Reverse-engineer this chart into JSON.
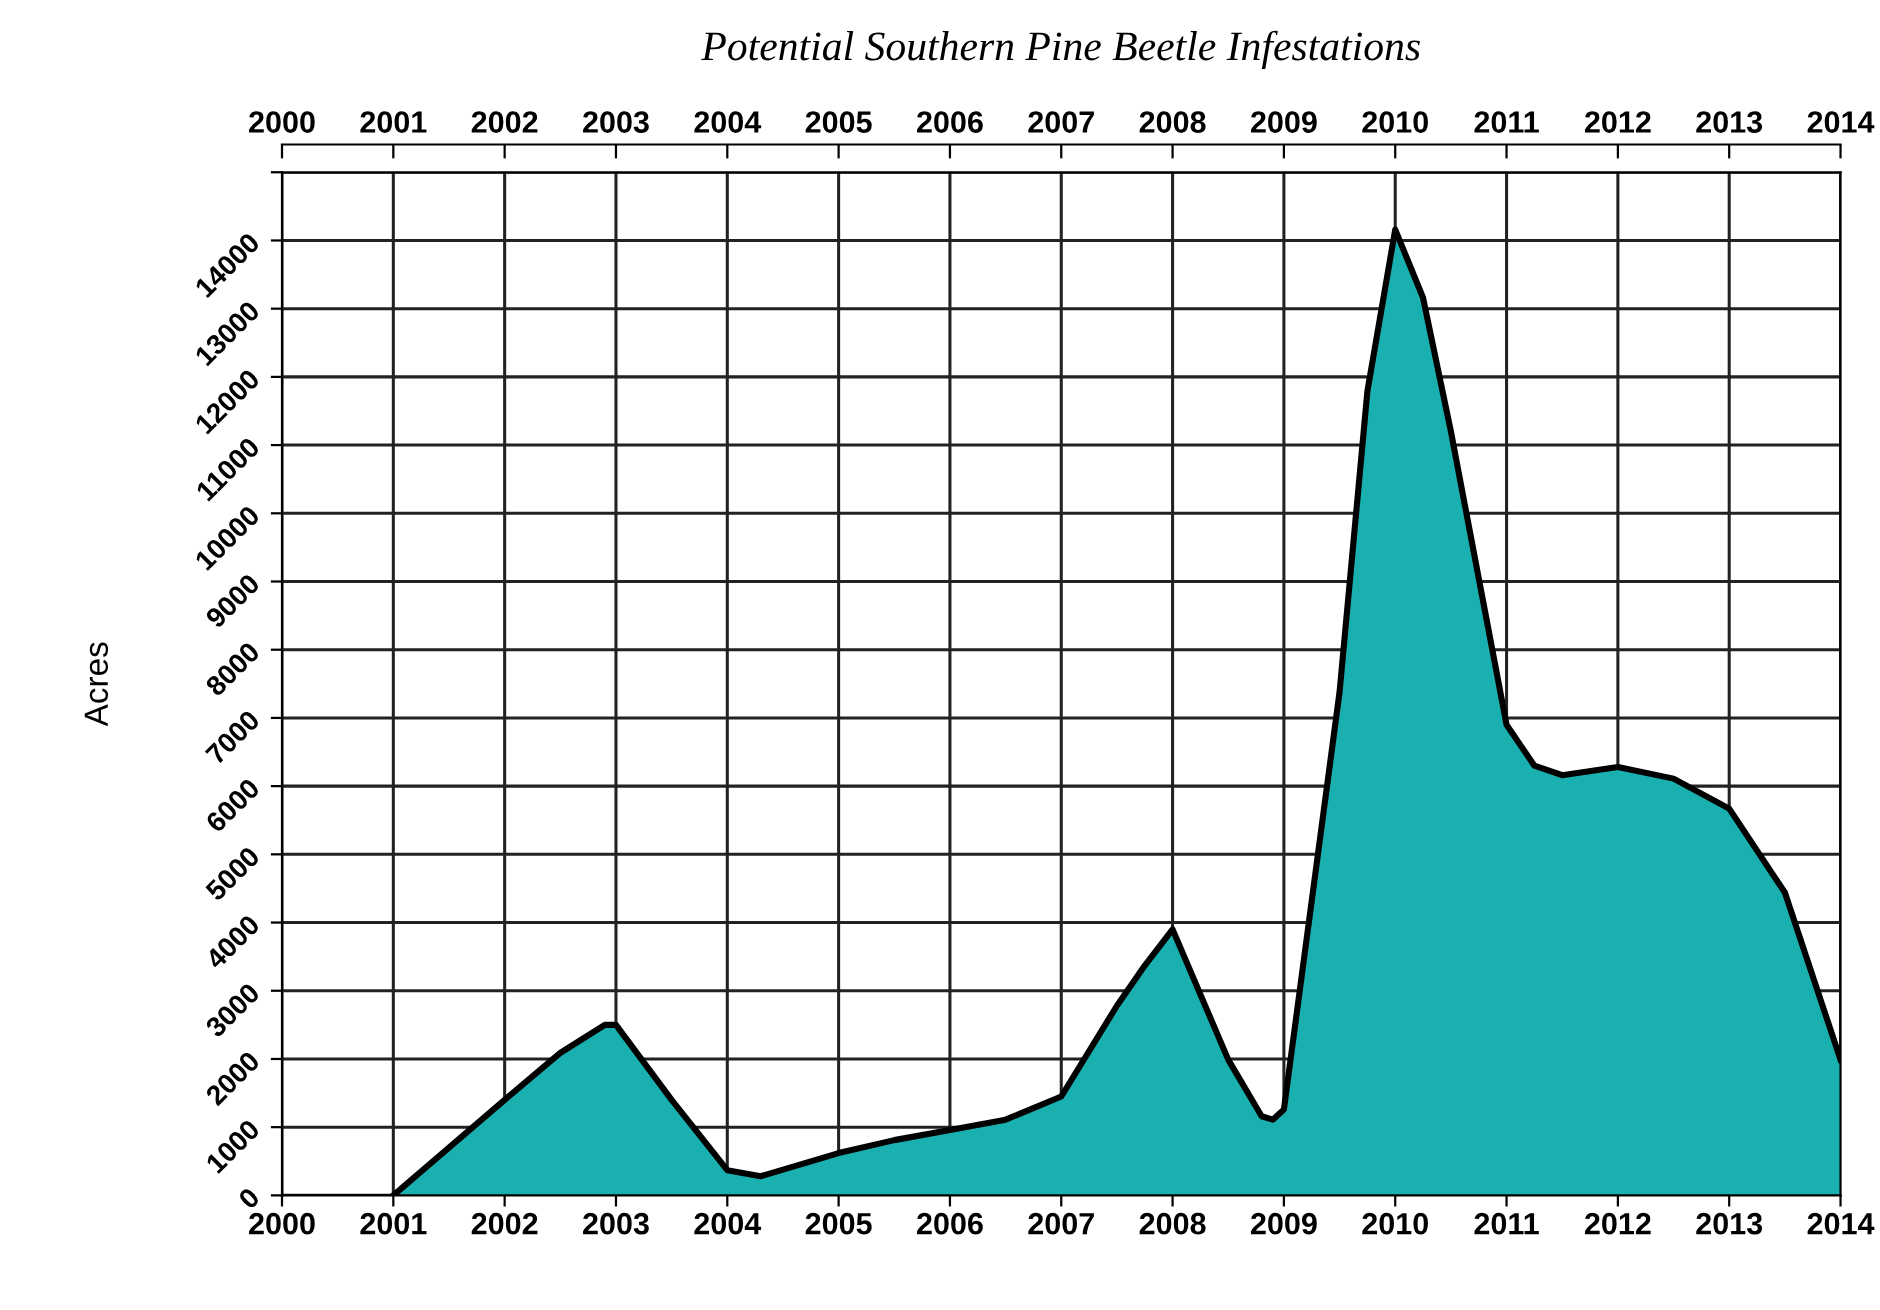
{
  "chart_data": {
    "type": "area",
    "title": "Potential Southern Pine Beetle Infestations",
    "ylabel": "Acres",
    "x": [
      2001,
      2002,
      2002.5,
      2002.9,
      2003,
      2003.5,
      2004,
      2004.3,
      2005,
      2005.5,
      2006,
      2006.5,
      2007,
      2007.5,
      2007.75,
      2008,
      2008.5,
      2008.8,
      2008.9,
      2009,
      2009.5,
      2009.75,
      2010,
      2010.25,
      2010.5,
      2010.75,
      2011,
      2011.25,
      2011.5,
      2012,
      2012.5,
      2013,
      2013.5,
      2014
    ],
    "series": [
      {
        "color": "#1ab0b0",
        "values": [
          0,
          1400,
          2090,
          2500,
          2500,
          1400,
          370,
          280,
          620,
          810,
          960,
          1110,
          1450,
          2780,
          3370,
          3900,
          1990,
          1160,
          1110,
          1260,
          7380,
          11790,
          14160,
          13160,
          11200,
          9050,
          6900,
          6300,
          6160,
          6280,
          6110,
          5670,
          4440,
          1990
        ]
      }
    ],
    "xlim": [
      2000,
      2014
    ],
    "xticks": [
      2000,
      2001,
      2002,
      2003,
      2004,
      2005,
      2006,
      2007,
      2008,
      2009,
      2010,
      2011,
      2012,
      2013,
      2014
    ],
    "x2lim": [
      2000,
      2014
    ],
    "x2ticks": [
      2000,
      2001,
      2002,
      2003,
      2004,
      2005,
      2006,
      2007,
      2008,
      2009,
      2010,
      2011,
      2012,
      2013,
      2014
    ],
    "ylim": [
      0,
      15000
    ],
    "yticks": [
      0,
      1000,
      2000,
      3000,
      4000,
      5000,
      6000,
      7000,
      8000,
      9000,
      10000,
      11000,
      12000,
      13000,
      14000,
      {
        "value": 15000,
        "label": null
      }
    ],
    "grid": true,
    "line_style": "solid",
    "marker": "none"
  }
}
